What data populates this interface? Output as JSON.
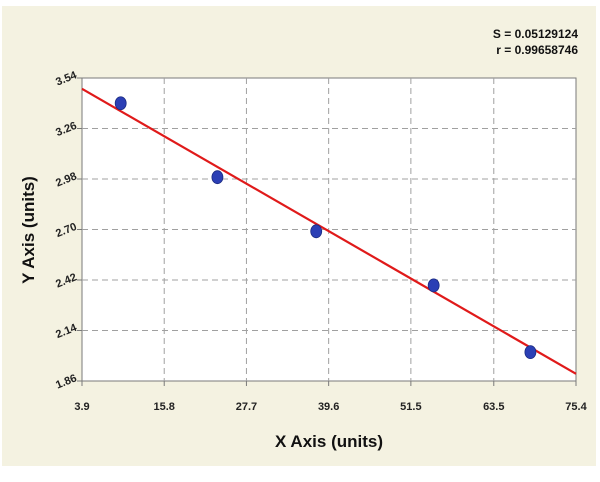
{
  "chart_data": {
    "type": "scatter",
    "title": "",
    "xlabel": "X Axis (units)",
    "ylabel": "Y Axis (units)",
    "xlim": [
      3.9,
      75.4
    ],
    "ylim": [
      1.86,
      3.54
    ],
    "x_ticks": [
      "3.9",
      "15.8",
      "27.7",
      "39.6",
      "51.5",
      "63.5",
      "75.4"
    ],
    "y_ticks": [
      "1.86",
      "2.14",
      "2.42",
      "2.70",
      "2.98",
      "3.26",
      "3.54"
    ],
    "grid": true,
    "series": [
      {
        "points": [
          {
            "x": 9.5,
            "y": 3.4
          },
          {
            "x": 23.5,
            "y": 2.99
          },
          {
            "x": 37.8,
            "y": 2.69
          },
          {
            "x": 54.8,
            "y": 2.39
          },
          {
            "x": 68.8,
            "y": 2.02
          }
        ],
        "color": "#2b3fb5"
      }
    ],
    "fit_line": {
      "color": "#e01a1a",
      "start": {
        "x": 3.9,
        "y": 3.48
      },
      "end": {
        "x": 75.4,
        "y": 1.9
      }
    },
    "annotations": {
      "s_text": "S = 0.05129124",
      "r_text": "r = 0.99658746"
    },
    "colors": {
      "panel_background": "#f4f2e1",
      "plot_background": "#ffffff",
      "point": "#2b3fb5",
      "fit_line": "#e01a1a"
    }
  }
}
